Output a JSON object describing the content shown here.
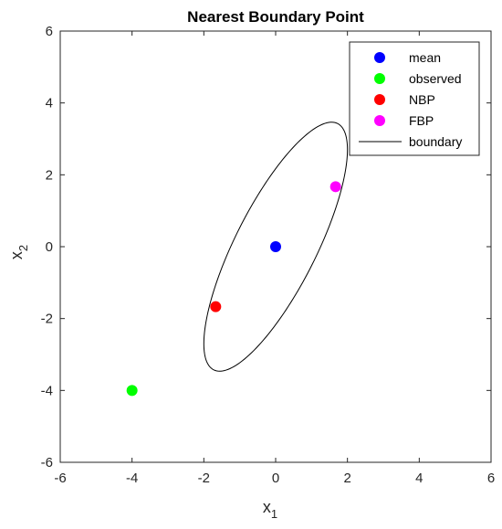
{
  "chart_data": {
    "type": "scatter",
    "title": "Nearest Boundary Point",
    "xlabel": "x",
    "xlabel_sub": "1",
    "ylabel": "x",
    "ylabel_sub": "2",
    "xlim": [
      -6,
      6
    ],
    "ylim": [
      -6,
      6
    ],
    "xticks": [
      "-6",
      "-4",
      "-2",
      "0",
      "2",
      "4",
      "6"
    ],
    "yticks": [
      "-6",
      "-4",
      "-2",
      "0",
      "2",
      "4",
      "6"
    ],
    "grid": false,
    "legend_position": "top-right",
    "series": [
      {
        "name": "mean",
        "color": "#0000ff",
        "marker": "circle",
        "x": [
          0
        ],
        "y": [
          0
        ]
      },
      {
        "name": "observed",
        "color": "#00ff00",
        "marker": "circle",
        "x": [
          -4
        ],
        "y": [
          -4
        ]
      },
      {
        "name": "NBP",
        "color": "#ff0000",
        "marker": "circle",
        "x": [
          -1.67
        ],
        "y": [
          -1.67
        ]
      },
      {
        "name": "FBP",
        "color": "#ff00ff",
        "marker": "circle",
        "x": [
          1.67
        ],
        "y": [
          1.67
        ]
      },
      {
        "name": "boundary",
        "color": "#000000",
        "marker": "line",
        "ellipse": {
          "center": [
            0,
            0
          ],
          "covariance": [
            [
              1.0,
              1.35
            ],
            [
              1.35,
              3.0
            ]
          ],
          "scale": 2.0
        }
      }
    ]
  }
}
